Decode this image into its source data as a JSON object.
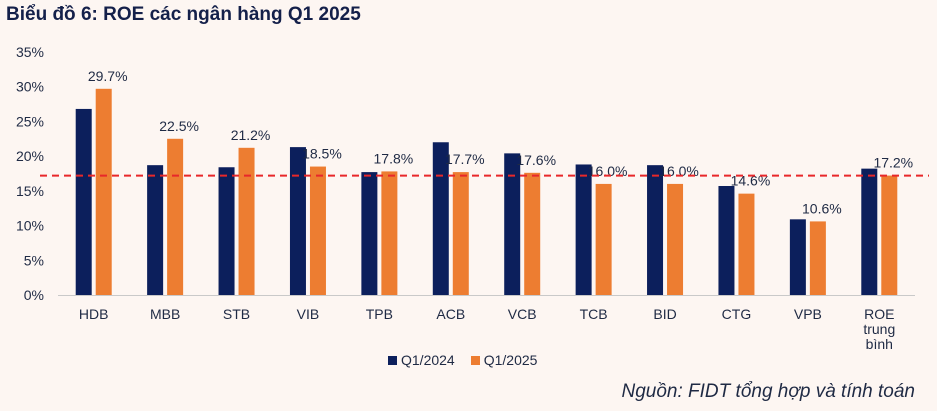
{
  "chart_data": {
    "type": "bar",
    "title": "Biểu đồ 6: ROE các ngân hàng Q1 2025",
    "categories": [
      "HDB",
      "MBB",
      "STB",
      "VIB",
      "TPB",
      "ACB",
      "VCB",
      "TCB",
      "BID",
      "CTG",
      "VPB",
      "ROE trung bình"
    ],
    "series": [
      {
        "name": "Q1/2024",
        "color": "#0c1f5c",
        "values": [
          26.8,
          18.7,
          18.4,
          21.3,
          17.7,
          22.0,
          20.4,
          18.8,
          18.7,
          15.7,
          10.9,
          18.2
        ]
      },
      {
        "name": "Q1/2025",
        "color": "#ed7d31",
        "values": [
          29.7,
          22.5,
          21.2,
          18.5,
          17.8,
          17.7,
          17.6,
          16.0,
          16.0,
          14.6,
          10.6,
          17.2
        ]
      }
    ],
    "data_labels": [
      "29.7%",
      "22.5%",
      "21.2%",
      "18.5%",
      "17.8%",
      "17.7%",
      "17.6%",
      "16.0%",
      "16.0%",
      "14.6%",
      "10.6%",
      "17.2%"
    ],
    "y_ticks": [
      "0%",
      "5%",
      "10%",
      "15%",
      "20%",
      "25%",
      "30%",
      "35%"
    ],
    "ylim": [
      0,
      35
    ],
    "reference_line": {
      "value": 17.2,
      "style": "dashed",
      "color": "#e8272a"
    },
    "grid": false,
    "legend_position": "bottom"
  },
  "source_note": "Nguồn: FIDT tổng hợp và tính toán"
}
